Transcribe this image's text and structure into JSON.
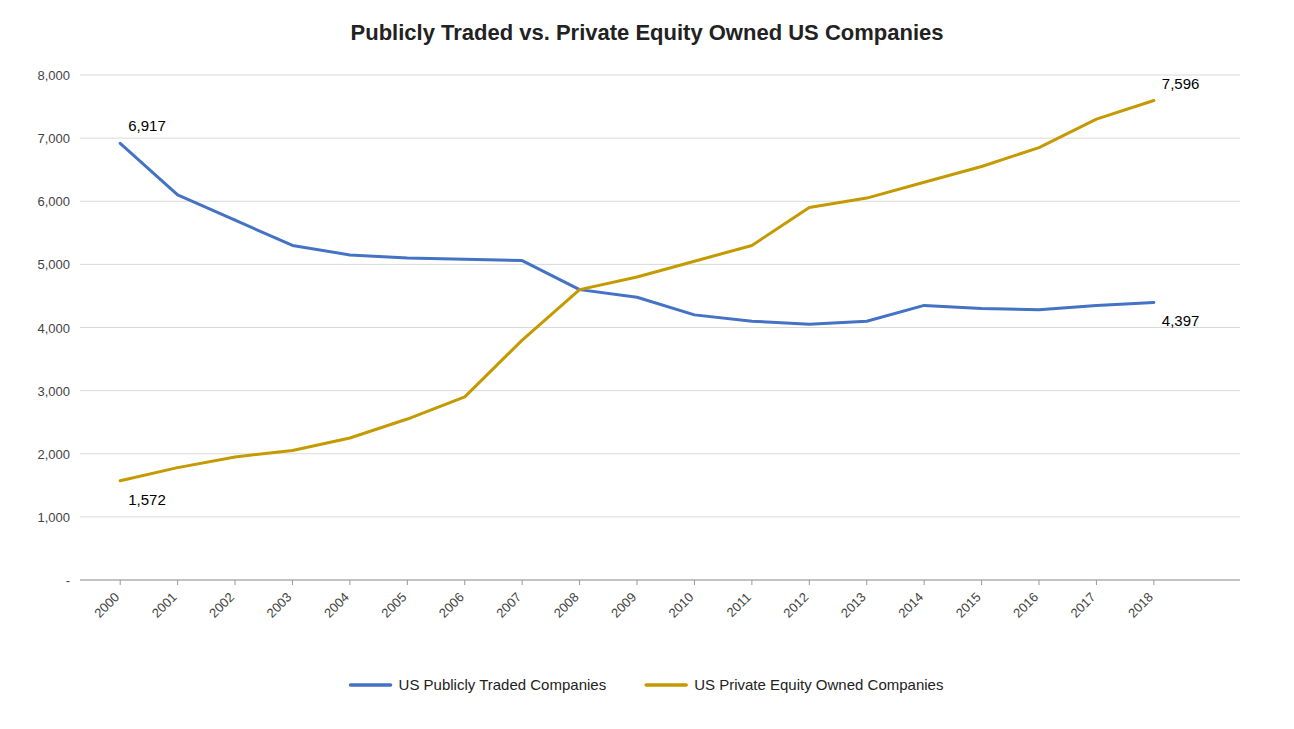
{
  "chart_data": {
    "type": "line",
    "title": "Publicly Traded vs. Private Equity Owned US Companies",
    "x": [
      2000,
      2001,
      2002,
      2003,
      2004,
      2005,
      2006,
      2007,
      2008,
      2009,
      2010,
      2011,
      2012,
      2013,
      2014,
      2015,
      2016,
      2017,
      2018
    ],
    "xlim": [
      1999.3,
      2019.5
    ],
    "xticks": [
      2000,
      2001,
      2002,
      2003,
      2004,
      2005,
      2006,
      2007,
      2008,
      2009,
      2010,
      2011,
      2012,
      2013,
      2014,
      2015,
      2016,
      2017,
      2018
    ],
    "series": [
      {
        "name": "US Publicly Traded Companies",
        "color": "#4472C4",
        "values": [
          6917,
          6100,
          5700,
          5300,
          5150,
          5100,
          5080,
          5060,
          4600,
          4480,
          4200,
          4100,
          4050,
          4100,
          4350,
          4300,
          4280,
          4350,
          4397
        ]
      },
      {
        "name": "US Private Equity Owned Companies",
        "color": "#C49A00",
        "values": [
          1572,
          1780,
          1950,
          2050,
          2250,
          2550,
          2900,
          3800,
          4600,
          4800,
          5050,
          5300,
          5900,
          6050,
          6300,
          6550,
          6850,
          7300,
          7596
        ]
      }
    ],
    "ylim": [
      0,
      8000
    ],
    "yticks": [
      {
        "value": 0,
        "label": "-"
      },
      {
        "value": 1000,
        "label": "1,000"
      },
      {
        "value": 2000,
        "label": "2,000"
      },
      {
        "value": 3000,
        "label": "3,000"
      },
      {
        "value": 4000,
        "label": "4,000"
      },
      {
        "value": 5000,
        "label": "5,000"
      },
      {
        "value": 6000,
        "label": "6,000"
      },
      {
        "value": 7000,
        "label": "7,000"
      },
      {
        "value": 8000,
        "label": "8,000"
      }
    ],
    "grid": true,
    "legend": "bottom",
    "annotations": [
      {
        "text": "6,917",
        "x": 2000,
        "y": 6917
      },
      {
        "text": "1,572",
        "x": 2000,
        "y": 1572
      },
      {
        "text": "7,596",
        "x": 2018,
        "y": 7596
      },
      {
        "text": "4,397",
        "x": 2018,
        "y": 4397
      }
    ]
  }
}
